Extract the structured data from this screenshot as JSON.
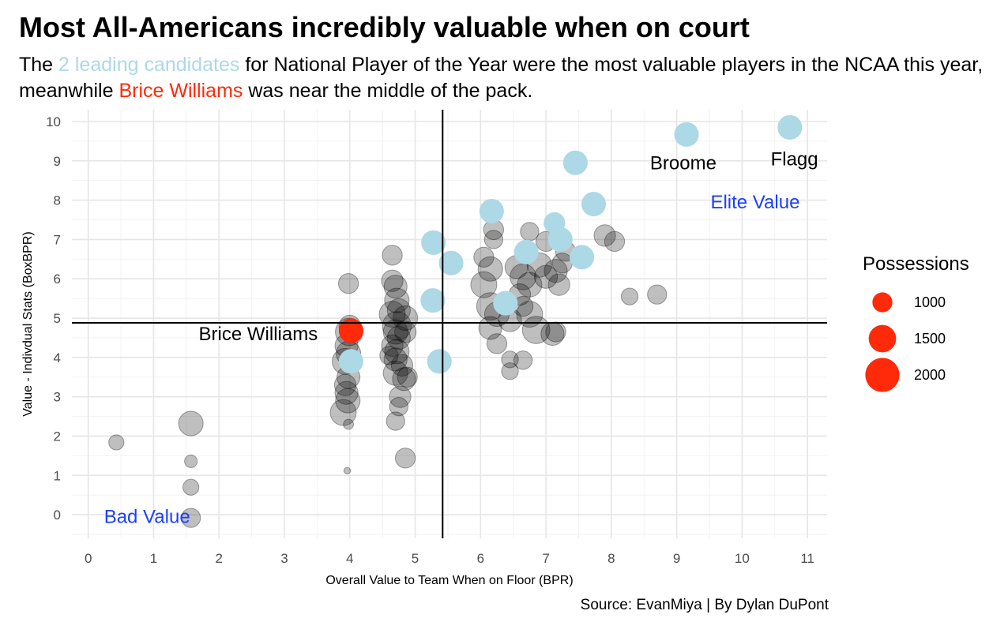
{
  "title": "Most All-Americans incredibly valuable when on court",
  "subtitle": {
    "p1": "The ",
    "highlight1": "2 leading candidates",
    "p2": " for National Player of the Year were the most valuable players in the NCAA this year, meanwhile ",
    "highlight2": "Brice Williams",
    "p3": " was near the middle of the pack."
  },
  "source": "Source: EvanMiya | By Dylan DuPont",
  "colors": {
    "allamerican": "#ADD8E6",
    "highlight": "#FF2A0A",
    "others": "#000000",
    "quadrant_label": "#1C3FFF"
  },
  "chart_data": {
    "type": "scatter",
    "xlabel": "Overall Value to Team When on Floor (BPR)",
    "ylabel": "Value - Indivdual Stats (BoxBPR)",
    "xlim": [
      -0.25,
      11.3
    ],
    "ylim": [
      -0.6,
      10.3
    ],
    "x_ticks": [
      0,
      1,
      2,
      3,
      4,
      5,
      6,
      7,
      8,
      9,
      10,
      11
    ],
    "y_ticks": [
      0,
      1,
      2,
      3,
      4,
      5,
      6,
      7,
      8,
      9,
      10
    ],
    "grid": true,
    "reference_lines": {
      "x": 5.42,
      "y": 4.88
    },
    "legend": {
      "title": "Possessions",
      "position": "right",
      "entries": [
        {
          "label": "1000",
          "possessions": 1000
        },
        {
          "label": "1500",
          "possessions": 1500
        },
        {
          "label": "2000",
          "possessions": 2000
        }
      ]
    },
    "annotations": [
      {
        "text": "Broome",
        "x": 9.1,
        "y": 8.95,
        "color": "#000000"
      },
      {
        "text": "Flagg",
        "x": 10.8,
        "y": 9.05,
        "color": "#000000"
      },
      {
        "text": "Elite Value",
        "x": 10.2,
        "y": 7.95,
        "color": "#1C3FFF"
      },
      {
        "text": "Bad Value",
        "x": 0.9,
        "y": -0.05,
        "color": "#1C3FFF"
      },
      {
        "text": "Brice Williams",
        "x": 2.6,
        "y": 4.6,
        "color": "#000000"
      }
    ],
    "series": [
      {
        "group": "others",
        "points": [
          [
            0.43,
            1.84,
            700
          ],
          [
            1.57,
            2.32,
            1300
          ],
          [
            1.57,
            1.36,
            550
          ],
          [
            1.57,
            0.7,
            750
          ],
          [
            1.57,
            -0.08,
            950
          ],
          [
            3.98,
            5.88,
            1000
          ],
          [
            3.96,
            1.12,
            200
          ],
          [
            3.98,
            2.3,
            400
          ],
          [
            3.9,
            2.6,
            1400
          ],
          [
            3.97,
            2.9,
            1300
          ],
          [
            3.95,
            3.1,
            1200
          ],
          [
            3.93,
            3.3,
            1100
          ],
          [
            3.98,
            3.5,
            1200
          ],
          [
            3.93,
            3.9,
            1400
          ],
          [
            3.98,
            4.1,
            1300
          ],
          [
            3.95,
            4.3,
            1200
          ],
          [
            3.99,
            4.65,
            1500
          ],
          [
            4.0,
            4.8,
            1100
          ],
          [
            4.65,
            6.6,
            1000
          ],
          [
            4.65,
            5.95,
            1100
          ],
          [
            4.7,
            5.8,
            1200
          ],
          [
            4.72,
            5.45,
            1300
          ],
          [
            4.65,
            5.1,
            1400
          ],
          [
            4.72,
            4.8,
            1600
          ],
          [
            4.7,
            4.65,
            1300
          ],
          [
            4.75,
            4.5,
            1200
          ],
          [
            4.65,
            4.3,
            1100
          ],
          [
            4.72,
            4.15,
            1300
          ],
          [
            4.6,
            4.05,
            900
          ],
          [
            4.7,
            3.95,
            1200
          ],
          [
            4.8,
            3.8,
            1100
          ],
          [
            4.7,
            3.6,
            1300
          ],
          [
            4.83,
            3.45,
            1200
          ],
          [
            4.77,
            3.0,
            1100
          ],
          [
            4.75,
            2.75,
            900
          ],
          [
            4.7,
            2.38,
            900
          ],
          [
            4.85,
            1.44,
            1000
          ],
          [
            4.85,
            5.0,
            1300
          ],
          [
            4.85,
            4.65,
            1100
          ],
          [
            4.88,
            3.5,
            1000
          ],
          [
            4.75,
            5.2,
            1200
          ],
          [
            6.05,
            6.55,
            1000
          ],
          [
            6.15,
            6.25,
            1300
          ],
          [
            6.05,
            5.85,
            1400
          ],
          [
            6.15,
            5.3,
            1500
          ],
          [
            6.25,
            5.1,
            1300
          ],
          [
            6.15,
            4.75,
            1200
          ],
          [
            6.25,
            4.35,
            1000
          ],
          [
            6.45,
            3.95,
            800
          ],
          [
            6.45,
            3.65,
            800
          ],
          [
            6.65,
            3.93,
            900
          ],
          [
            6.2,
            7.25,
            1000
          ],
          [
            6.2,
            7.0,
            900
          ],
          [
            6.55,
            6.3,
            1200
          ],
          [
            6.65,
            6.05,
            1400
          ],
          [
            6.75,
            5.85,
            1300
          ],
          [
            6.6,
            5.6,
            1100
          ],
          [
            6.65,
            5.3,
            1000
          ],
          [
            6.75,
            5.1,
            1400
          ],
          [
            6.85,
            4.7,
            1500
          ],
          [
            6.45,
            4.95,
            1200
          ],
          [
            7.1,
            4.6,
            1200
          ],
          [
            7.15,
            4.65,
            1000
          ],
          [
            6.9,
            6.35,
            1300
          ],
          [
            7.0,
            6.05,
            1200
          ],
          [
            7.15,
            6.2,
            1200
          ],
          [
            7.2,
            5.85,
            1100
          ],
          [
            6.75,
            7.2,
            900
          ],
          [
            7.0,
            6.95,
            1000
          ],
          [
            7.25,
            6.4,
            1000
          ],
          [
            7.3,
            6.7,
            1000
          ],
          [
            7.9,
            7.1,
            1100
          ],
          [
            8.05,
            6.95,
            1000
          ],
          [
            8.28,
            5.55,
            800
          ],
          [
            8.7,
            5.6,
            950
          ]
        ]
      },
      {
        "group": "allamerican",
        "points": [
          [
            5.28,
            6.92,
            1300
          ],
          [
            5.55,
            6.4,
            1300
          ],
          [
            5.27,
            5.45,
            1300
          ],
          [
            5.37,
            3.9,
            1300
          ],
          [
            4.02,
            3.9,
            1300
          ],
          [
            6.17,
            7.72,
            1300
          ],
          [
            6.38,
            5.38,
            1300
          ],
          [
            6.7,
            6.68,
            1300
          ],
          [
            7.13,
            7.42,
            1100
          ],
          [
            7.22,
            7.0,
            1300
          ],
          [
            7.45,
            8.95,
            1300
          ],
          [
            7.73,
            7.9,
            1300
          ],
          [
            7.55,
            6.55,
            1300
          ],
          [
            9.15,
            9.67,
            1300
          ],
          [
            10.73,
            9.85,
            1300
          ]
        ]
      },
      {
        "group": "highlight",
        "points": [
          [
            4.02,
            4.68,
            1300
          ]
        ]
      }
    ]
  }
}
